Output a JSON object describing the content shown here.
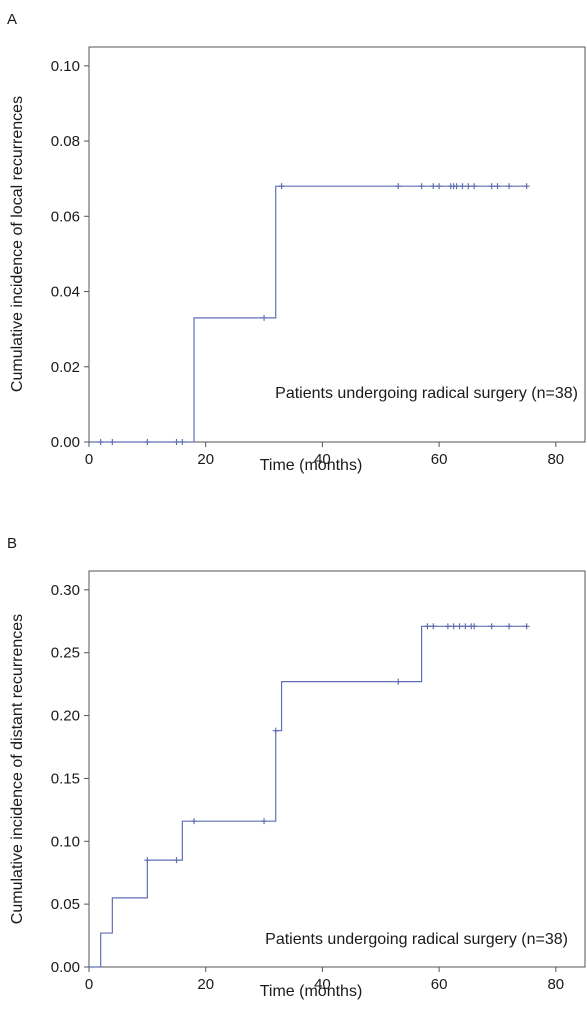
{
  "chart_data": [
    {
      "panel": "A",
      "type": "line",
      "subtype": "step (cumulative incidence) with censor marks",
      "xlabel": "Time (months)",
      "ylabel": "Cumulative incidence of local recurrences",
      "xlim": [
        0,
        85
      ],
      "ylim": [
        0,
        0.105
      ],
      "xticks": [
        0,
        20,
        40,
        60,
        80
      ],
      "yticks": [
        0.0,
        0.02,
        0.04,
        0.06,
        0.08,
        0.1
      ],
      "ytick_labels": [
        "0.00",
        "0.02",
        "0.04",
        "0.06",
        "0.08",
        "0.10"
      ],
      "grid": false,
      "line_color": "#6170b5",
      "annotation": "Patients undergoing radical surgery (n=38)",
      "steps": [
        {
          "x": 0,
          "y": 0.0
        },
        {
          "x": 18,
          "y": 0.033
        },
        {
          "x": 32,
          "y": 0.068
        },
        {
          "x": 75,
          "y": 0.068
        }
      ],
      "censored": [
        {
          "x": 2,
          "y": 0.0
        },
        {
          "x": 4,
          "y": 0.0
        },
        {
          "x": 10,
          "y": 0.0
        },
        {
          "x": 15,
          "y": 0.0
        },
        {
          "x": 16,
          "y": 0.0
        },
        {
          "x": 30,
          "y": 0.033
        },
        {
          "x": 33,
          "y": 0.068
        },
        {
          "x": 53,
          "y": 0.068
        },
        {
          "x": 57,
          "y": 0.068
        },
        {
          "x": 59,
          "y": 0.068
        },
        {
          "x": 60,
          "y": 0.068
        },
        {
          "x": 62,
          "y": 0.068
        },
        {
          "x": 62.5,
          "y": 0.068
        },
        {
          "x": 63,
          "y": 0.068
        },
        {
          "x": 64,
          "y": 0.068
        },
        {
          "x": 65,
          "y": 0.068
        },
        {
          "x": 66,
          "y": 0.068
        },
        {
          "x": 69,
          "y": 0.068
        },
        {
          "x": 70,
          "y": 0.068
        },
        {
          "x": 72,
          "y": 0.068
        },
        {
          "x": 75,
          "y": 0.068
        }
      ]
    },
    {
      "panel": "B",
      "type": "line",
      "subtype": "step (cumulative incidence) with censor marks",
      "xlabel": "Time (months)",
      "ylabel": "Cumulative incidence of distant recurrences",
      "xlim": [
        0,
        85
      ],
      "ylim": [
        0,
        0.315
      ],
      "xticks": [
        0,
        20,
        40,
        60,
        80
      ],
      "yticks": [
        0.0,
        0.05,
        0.1,
        0.15,
        0.2,
        0.25,
        0.3
      ],
      "ytick_labels": [
        "0.00",
        "0.05",
        "0.10",
        "0.15",
        "0.20",
        "0.25",
        "0.30"
      ],
      "grid": false,
      "line_color": "#6170b5",
      "annotation": "Patients undergoing radical surgery (n=38)",
      "steps": [
        {
          "x": 0,
          "y": 0.0
        },
        {
          "x": 2,
          "y": 0.027
        },
        {
          "x": 4,
          "y": 0.055
        },
        {
          "x": 10,
          "y": 0.085
        },
        {
          "x": 16,
          "y": 0.116
        },
        {
          "x": 32,
          "y": 0.188
        },
        {
          "x": 33,
          "y": 0.227
        },
        {
          "x": 57,
          "y": 0.271
        },
        {
          "x": 75,
          "y": 0.271
        }
      ],
      "censored": [
        {
          "x": 10,
          "y": 0.085
        },
        {
          "x": 15,
          "y": 0.085
        },
        {
          "x": 18,
          "y": 0.116
        },
        {
          "x": 30,
          "y": 0.116
        },
        {
          "x": 32,
          "y": 0.188
        },
        {
          "x": 53,
          "y": 0.227
        },
        {
          "x": 58,
          "y": 0.271
        },
        {
          "x": 59,
          "y": 0.271
        },
        {
          "x": 61.5,
          "y": 0.271
        },
        {
          "x": 62.5,
          "y": 0.271
        },
        {
          "x": 63.5,
          "y": 0.271
        },
        {
          "x": 64.5,
          "y": 0.271
        },
        {
          "x": 65.5,
          "y": 0.271
        },
        {
          "x": 66,
          "y": 0.271
        },
        {
          "x": 69,
          "y": 0.271
        },
        {
          "x": 72,
          "y": 0.271
        },
        {
          "x": 75,
          "y": 0.271
        }
      ]
    }
  ]
}
